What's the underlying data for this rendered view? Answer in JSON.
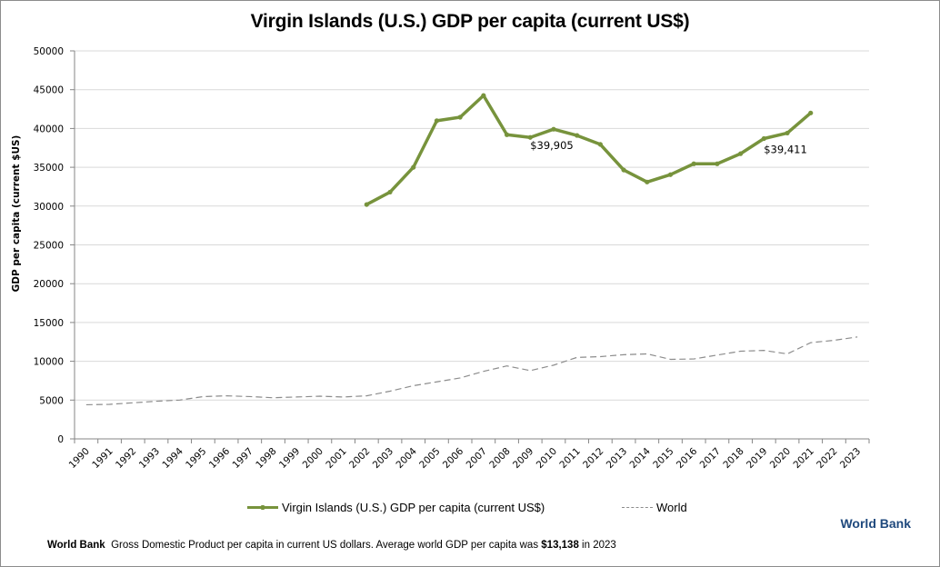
{
  "chart_data": {
    "type": "line",
    "title": "Virgin Islands (U.S.) GDP per capita (current US$)",
    "xlabel": "",
    "ylabel": "GDP per capita (current $US)",
    "ylim": [
      0,
      50000
    ],
    "yticks": [
      0,
      5000,
      10000,
      15000,
      20000,
      25000,
      30000,
      35000,
      40000,
      45000,
      50000
    ],
    "grid": true,
    "legend_position": "bottom",
    "categories": [
      "1990",
      "1991",
      "1992",
      "1993",
      "1994",
      "1995",
      "1996",
      "1997",
      "1998",
      "1999",
      "2000",
      "2001",
      "2002",
      "2003",
      "2004",
      "2005",
      "2006",
      "2007",
      "2008",
      "2009",
      "2010",
      "2011",
      "2012",
      "2013",
      "2014",
      "2015",
      "2016",
      "2017",
      "2018",
      "2019",
      "2020",
      "2021",
      "2022",
      "2023"
    ],
    "series": [
      {
        "name": "Virgin Islands (U.S.) GDP per capita (current US$)",
        "color": "#77933c",
        "style": "solid",
        "values": [
          null,
          null,
          null,
          null,
          null,
          null,
          null,
          null,
          null,
          null,
          null,
          null,
          30200,
          31800,
          35000,
          41000,
          41450,
          44250,
          39200,
          38850,
          39905,
          39100,
          37950,
          34650,
          33100,
          34050,
          35450,
          35450,
          36750,
          38700,
          39411,
          42000,
          null,
          null
        ]
      },
      {
        "name": "World",
        "color": "#8c8c8c",
        "style": "dashed",
        "values": [
          4400,
          4450,
          4650,
          4850,
          5000,
          5450,
          5550,
          5450,
          5300,
          5400,
          5500,
          5400,
          5550,
          6150,
          6850,
          7350,
          7850,
          8700,
          9400,
          8800,
          9500,
          10500,
          10600,
          10850,
          10950,
          10250,
          10300,
          10800,
          11300,
          11400,
          10950,
          12400,
          12700,
          13138
        ]
      }
    ],
    "annotations": [
      {
        "category": "2010",
        "series": 0,
        "text": "$39,905"
      },
      {
        "category": "2020",
        "series": 0,
        "text": "$39,411"
      }
    ]
  },
  "legend": {
    "series_label": "Virgin Islands (U.S.) GDP per capita (current US$)",
    "world_label": "World"
  },
  "source": {
    "brand": "World Bank",
    "footnote_brand": "World Bank",
    "footnote_text": "Gross Domestic Product per capita in current US dollars.  Average world GDP per capita was ",
    "footnote_value": "$13,138",
    "footnote_suffix": " in 2023"
  }
}
